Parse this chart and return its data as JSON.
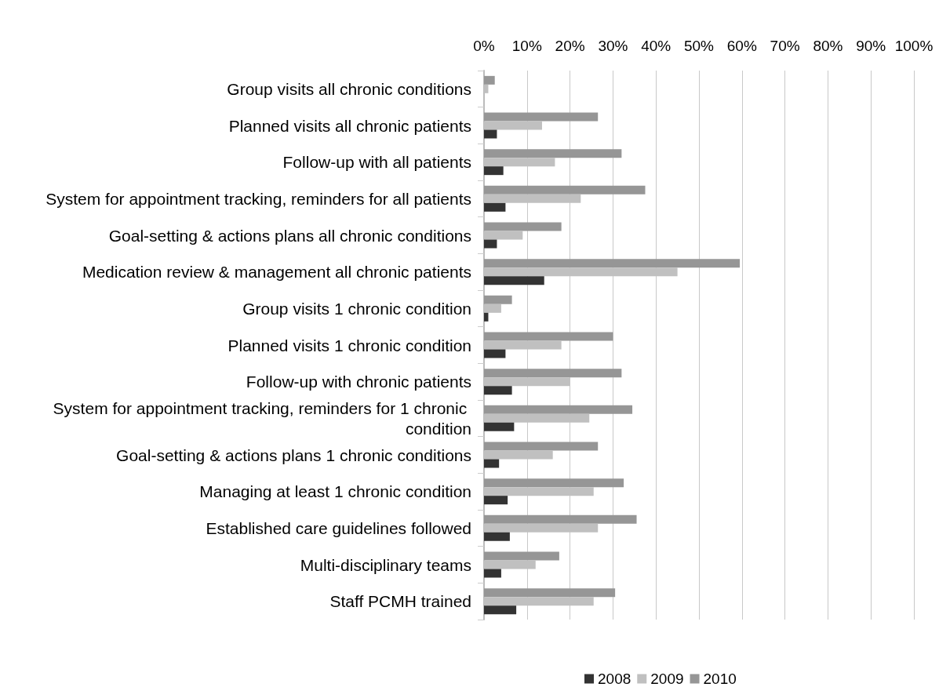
{
  "chart_data": {
    "type": "bar",
    "orientation": "horizontal",
    "categories": [
      "Group visits all chronic conditions",
      "Planned visits all chronic patients",
      "Follow-up with all patients",
      "System for appointment tracking, reminders for all patients",
      "Goal-setting & actions plans all chronic conditions",
      "Medication review & management all chronic patients",
      "Group visits 1 chronic condition",
      "Planned visits 1 chronic condition",
      "Follow-up with chronic patients",
      "System for appointment tracking, reminders for 1 chronic condition",
      "Goal-setting & actions plans 1 chronic conditions",
      "Managing at least 1 chronic condition",
      "Established care guidelines followed",
      "Multi-disciplinary teams",
      "Staff PCMH trained"
    ],
    "series": [
      {
        "name": "2008",
        "color": "#333333",
        "values": [
          0,
          3,
          4.5,
          5,
          3,
          14,
          1,
          5,
          6.5,
          7,
          3.5,
          5.5,
          6,
          4,
          7.5
        ]
      },
      {
        "name": "2009",
        "color": "#c0c0c0",
        "values": [
          1,
          13.5,
          16.5,
          22.5,
          9,
          45,
          4,
          18,
          20,
          24.5,
          16,
          25.5,
          26.5,
          12,
          25.5
        ]
      },
      {
        "name": "2010",
        "color": "#969696",
        "values": [
          2.5,
          26.5,
          32,
          37.5,
          18,
          59.5,
          6.5,
          30,
          32,
          34.5,
          26.5,
          32.5,
          35.5,
          17.5,
          30.5
        ]
      }
    ],
    "xlim": [
      0,
      100
    ],
    "xticks": [
      {
        "value": 0,
        "label": "0%"
      },
      {
        "value": 10,
        "label": "10%"
      },
      {
        "value": 20,
        "label": "20%"
      },
      {
        "value": 30,
        "label": "30%"
      },
      {
        "value": 40,
        "label": "40%"
      },
      {
        "value": 50,
        "label": "50%"
      },
      {
        "value": 60,
        "label": "60%"
      },
      {
        "value": 70,
        "label": "70%"
      },
      {
        "value": 80,
        "label": "80%"
      },
      {
        "value": 90,
        "label": "90%"
      },
      {
        "value": 100,
        "label": "100%"
      }
    ],
    "grid": "x",
    "legend": "bottom"
  }
}
